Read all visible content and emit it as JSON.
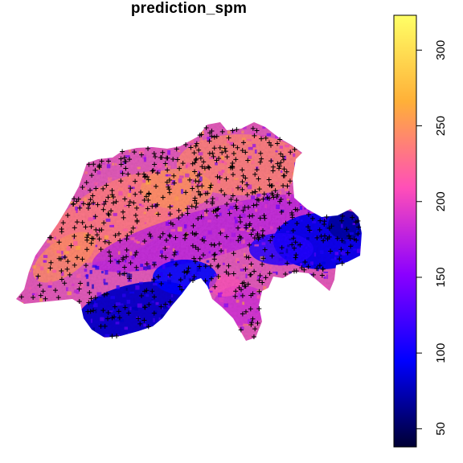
{
  "title": "prediction_spm",
  "colors": {
    "ramp": [
      "#000033",
      "#0000FF",
      "#8B00FF",
      "#FF4FB8",
      "#FFB038",
      "#FFFF66"
    ],
    "points": "#000000",
    "background": "#FFFFFF"
  },
  "chart_data": {
    "type": "heatmap",
    "title": "prediction_spm",
    "legend": {
      "position": "right",
      "orientation": "vertical",
      "range": [
        38,
        323
      ],
      "ticks": [
        {
          "value": 50,
          "label": "50"
        },
        {
          "value": 100,
          "label": "100"
        },
        {
          "value": 150,
          "label": "150"
        },
        {
          "value": 200,
          "label": "200"
        },
        {
          "value": 250,
          "label": "250"
        },
        {
          "value": 300,
          "label": "300"
        }
      ]
    },
    "overlay": {
      "marker": "+",
      "description_color": "#000000"
    }
  }
}
